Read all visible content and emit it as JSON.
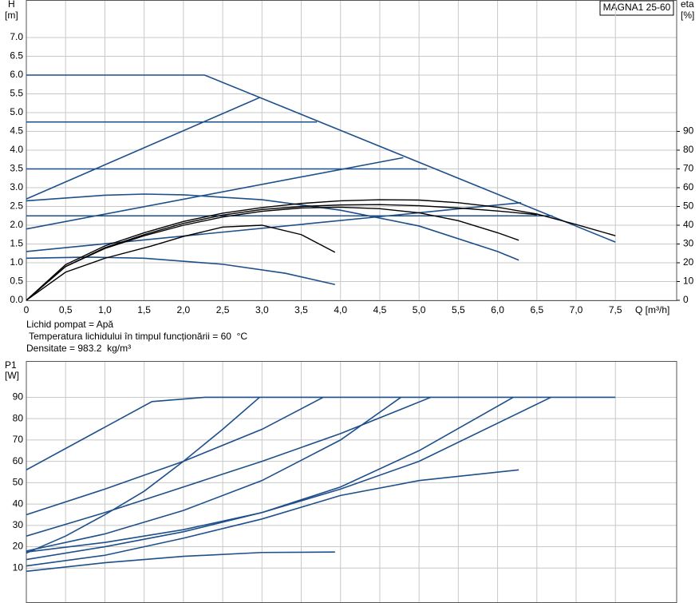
{
  "chart_data": [
    {
      "type": "line",
      "model": "MAGNA1 25-60",
      "ylabel": "H",
      "yunit": "[m]",
      "y2label": "eta",
      "y2unit": "[%]",
      "xlabel": "Q [m³/h]",
      "xlim": [
        0,
        8.28
      ],
      "ylim": [
        0,
        8
      ],
      "y2lim": [
        0,
        160
      ],
      "grid": true,
      "xticks": [
        {
          "value": 0,
          "label": "0"
        },
        {
          "value": 0.5,
          "label": "0,5"
        },
        {
          "value": 1,
          "label": "1,0"
        },
        {
          "value": 1.5,
          "label": "1,5"
        },
        {
          "value": 2,
          "label": "2,0"
        },
        {
          "value": 2.5,
          "label": "2,5"
        },
        {
          "value": 3,
          "label": "3,0"
        },
        {
          "value": 3.5,
          "label": "3,5"
        },
        {
          "value": 4,
          "label": "4,0"
        },
        {
          "value": 4.5,
          "label": "4,5"
        },
        {
          "value": 5,
          "label": "5,0"
        },
        {
          "value": 5.5,
          "label": "5,5"
        },
        {
          "value": 6,
          "label": "6,0"
        },
        {
          "value": 6.5,
          "label": "6,5"
        },
        {
          "value": 7,
          "label": "7,0"
        },
        {
          "value": 7.5,
          "label": "7,5"
        }
      ],
      "yticks": [
        {
          "value": 0,
          "label": "0.0"
        },
        {
          "value": 0.5,
          "label": "0.5"
        },
        {
          "value": 1,
          "label": "1.0"
        },
        {
          "value": 1.5,
          "label": "1.5"
        },
        {
          "value": 2,
          "label": "2.0"
        },
        {
          "value": 2.5,
          "label": "2.5"
        },
        {
          "value": 3,
          "label": "3.0"
        },
        {
          "value": 3.5,
          "label": "3.5"
        },
        {
          "value": 4,
          "label": "4.0"
        },
        {
          "value": 4.5,
          "label": "4.5"
        },
        {
          "value": 5,
          "label": "5.0"
        },
        {
          "value": 5.5,
          "label": "5.5"
        },
        {
          "value": 6,
          "label": "6.0"
        },
        {
          "value": 6.5,
          "label": "6.5"
        },
        {
          "value": 7,
          "label": "7.0"
        }
      ],
      "y2ticks": [
        0,
        10,
        20,
        30,
        40,
        50,
        60,
        70,
        80,
        90
      ],
      "series": [
        {
          "color": "#1d4f8a",
          "x": [
            0,
            2.27,
            7.5
          ],
          "values": [
            6,
            6,
            1.55
          ]
        },
        {
          "color": "#1d4f8a",
          "x": [
            0,
            2.97
          ],
          "values": [
            2.7,
            5.4
          ]
        },
        {
          "color": "#1d4f8a",
          "x": [
            0,
            4.8
          ],
          "values": [
            1.9,
            3.8
          ]
        },
        {
          "color": "#1d4f8a",
          "x": [
            0,
            6.3
          ],
          "values": [
            1.3,
            2.6
          ]
        },
        {
          "color": "#1d4f8a",
          "x": [
            0,
            3.7
          ],
          "values": [
            4.75,
            4.75
          ]
        },
        {
          "color": "#1d4f8a",
          "x": [
            0,
            5.1
          ],
          "values": [
            3.5,
            3.5
          ]
        },
        {
          "color": "#1d4f8a",
          "x": [
            0,
            6.7
          ],
          "values": [
            2.25,
            2.25
          ]
        },
        {
          "color": "#1d4f8a",
          "x": [
            0,
            1,
            1.5,
            2,
            3,
            4,
            5,
            6,
            6.27
          ],
          "values": [
            2.65,
            2.8,
            2.83,
            2.81,
            2.68,
            2.4,
            1.98,
            1.3,
            1.07
          ]
        },
        {
          "color": "#1d4f8a",
          "x": [
            0,
            0.8,
            1.5,
            2.5,
            3.3,
            3.93
          ],
          "values": [
            1.12,
            1.15,
            1.12,
            0.96,
            0.72,
            0.42
          ]
        },
        {
          "color": "#000000",
          "axis": "y2",
          "x": [
            0,
            0.5,
            1,
            1.5,
            2,
            2.5,
            3,
            3.5,
            4,
            4.5,
            5,
            5.5,
            6,
            6.5,
            7,
            7.5
          ],
          "values": [
            0,
            19,
            29,
            36,
            42,
            46.4,
            49.4,
            51.6,
            53,
            53.6,
            53.4,
            52,
            49.6,
            46,
            40.4,
            34.4
          ]
        },
        {
          "color": "#000000",
          "axis": "y2",
          "x": [
            0,
            0.5,
            1,
            1.5,
            2,
            2.5,
            3,
            3.5,
            4,
            4.5,
            5,
            5.5,
            6,
            6.5
          ],
          "values": [
            0,
            18,
            28,
            35,
            41,
            45.4,
            48.4,
            50,
            50.8,
            51,
            50.4,
            49.2,
            47.6,
            45.6
          ]
        },
        {
          "color": "#000000",
          "axis": "y2",
          "x": [
            0,
            0.5,
            1,
            1.5,
            2,
            2.5,
            3,
            3.5,
            4,
            4.5,
            5,
            5.5,
            6,
            6.27
          ],
          "values": [
            0,
            18,
            27.6,
            34.4,
            40,
            44.4,
            47.4,
            49.2,
            49.6,
            48.8,
            46.6,
            42.4,
            36,
            32
          ]
        },
        {
          "color": "#000000",
          "axis": "y2",
          "x": [
            0,
            0.5,
            1,
            1.6,
            2,
            2.5,
            3,
            3.5,
            3.93
          ],
          "values": [
            0,
            15,
            22.4,
            29,
            34,
            39,
            40,
            35,
            25.6
          ]
        }
      ]
    },
    {
      "type": "line",
      "ylabel": "P1",
      "yunit": "[W]",
      "xlim": [
        0,
        8.28
      ],
      "ylim": [
        0,
        107
      ],
      "grid": true,
      "yticks": [
        10,
        20,
        30,
        40,
        50,
        60,
        70,
        80,
        90
      ],
      "series": [
        {
          "color": "#1d4f8a",
          "x": [
            0,
            1.6,
            2.27,
            7.5
          ],
          "values": [
            56,
            88,
            90,
            90
          ]
        },
        {
          "color": "#1d4f8a",
          "x": [
            0,
            1,
            2,
            3,
            3.78
          ],
          "values": [
            35,
            47,
            60,
            75,
            90
          ]
        },
        {
          "color": "#1d4f8a",
          "x": [
            0,
            0.5,
            1,
            1.5,
            2,
            2.5,
            2.97
          ],
          "values": [
            17,
            25,
            35,
            46,
            60,
            75,
            90
          ]
        },
        {
          "color": "#1d4f8a",
          "x": [
            0,
            1,
            2,
            3,
            4,
            5.15
          ],
          "values": [
            25,
            36,
            48,
            60,
            73,
            90
          ]
        },
        {
          "color": "#1d4f8a",
          "x": [
            0,
            1,
            2,
            3,
            4,
            4.77
          ],
          "values": [
            18,
            26,
            37,
            51,
            70,
            90
          ]
        },
        {
          "color": "#1d4f8a",
          "x": [
            0,
            1,
            2,
            3,
            4,
            5,
            6.2
          ],
          "values": [
            14,
            20,
            27,
            36,
            48,
            65,
            90
          ]
        },
        {
          "color": "#1d4f8a",
          "x": [
            0,
            1,
            2,
            3,
            4,
            5,
            6.68
          ],
          "values": [
            17.5,
            22,
            28,
            36,
            47,
            60,
            90
          ]
        },
        {
          "color": "#1d4f8a",
          "x": [
            0,
            1,
            2,
            3,
            4,
            5,
            6.27
          ],
          "values": [
            11,
            16,
            24,
            33,
            44,
            51,
            56
          ]
        },
        {
          "color": "#1d4f8a",
          "x": [
            0,
            1,
            2,
            3,
            3.93
          ],
          "values": [
            8.5,
            12.5,
            15.5,
            17.3,
            17.5
          ]
        }
      ]
    }
  ],
  "info": [
    "Lichid pompat = Apă",
    " Temperatura lichidului în timpul funcționării = 60  °C",
    "Densitate = 983.2  kg/m³"
  ]
}
